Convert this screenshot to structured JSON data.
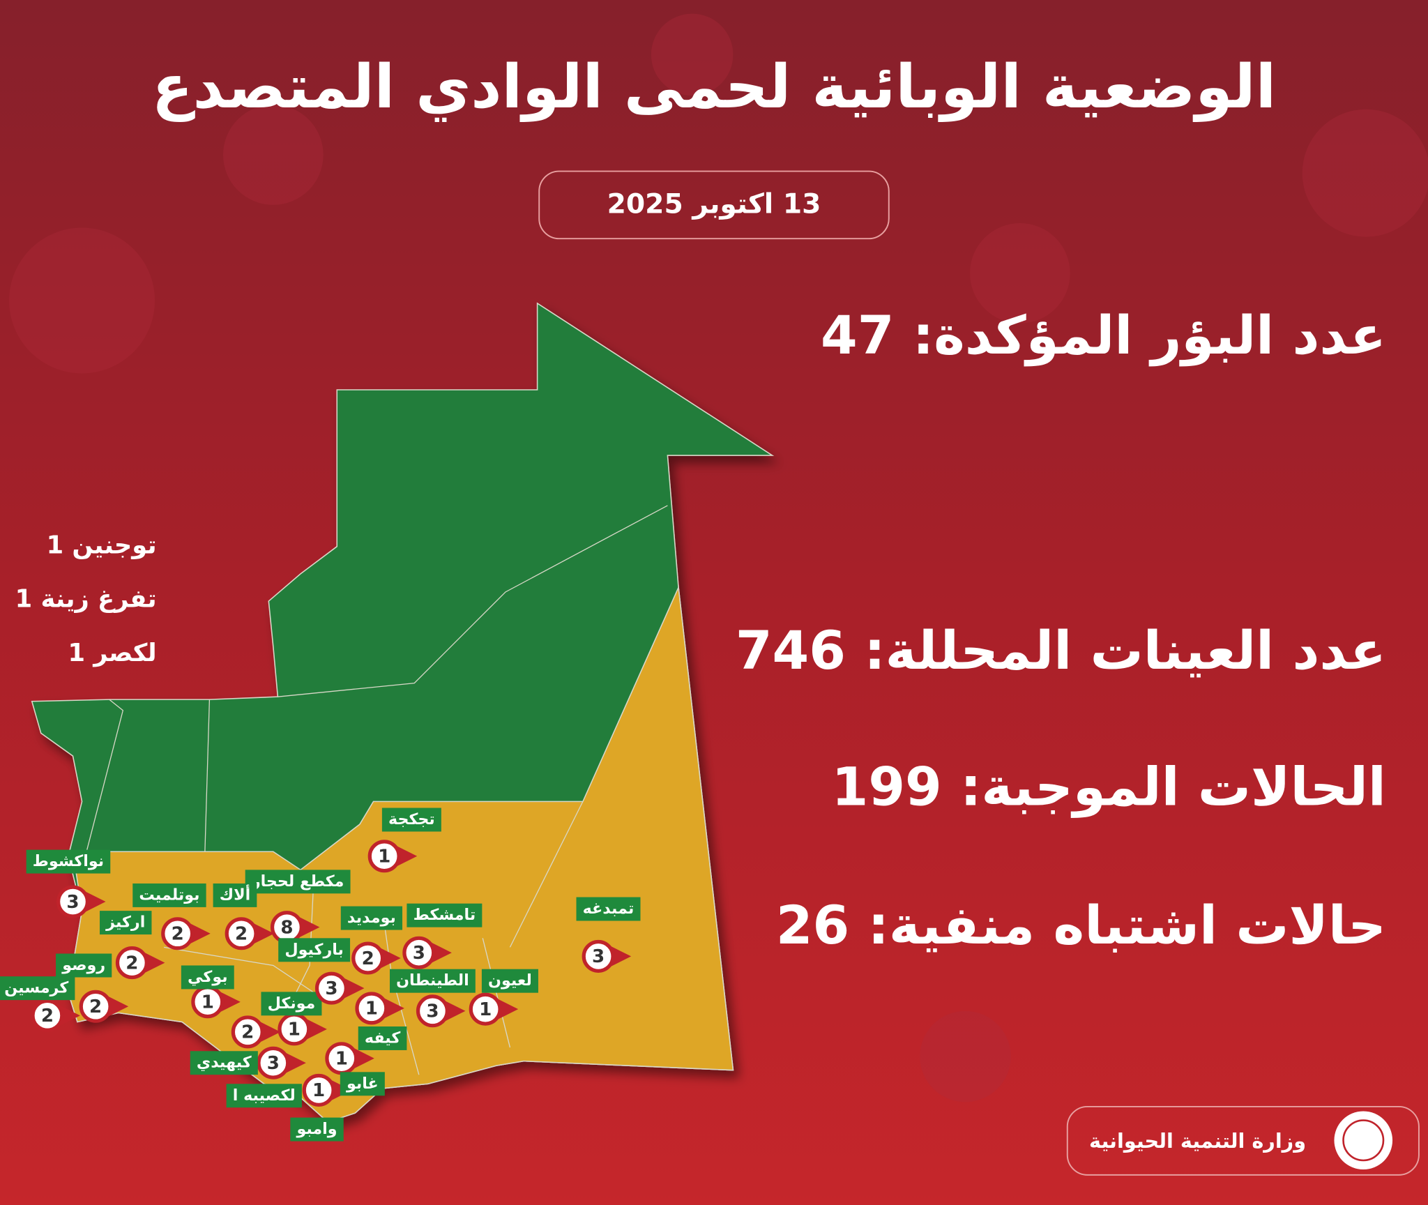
{
  "title": "الوضعية الوبائية لحمى الوادي المتصدع",
  "date": "13 اكتوبر 2025",
  "stats": [
    {
      "label": "عدد البؤر المؤكدة:",
      "value": 47
    },
    {
      "label": "عدد العينات المحللة:",
      "value": 746
    },
    {
      "label": "الحالات الموجبة:",
      "value": 199
    },
    {
      "label": "حالات اشتباه منفية:",
      "value": 26
    }
  ],
  "side_list": [
    "توجنين 1",
    "تفرغ زينة 1",
    "لكصر 1"
  ],
  "locations": [
    {
      "name": "تجكجة",
      "count": 1
    },
    {
      "name": "نواكشوط",
      "count": 3
    },
    {
      "name": "مكطع لحجار",
      "count": 8
    },
    {
      "name": "ألاك",
      "count": 2
    },
    {
      "name": "بوتلميت",
      "count": 2
    },
    {
      "name": "اركيز",
      "count": 2
    },
    {
      "name": "روصو",
      "count": 2
    },
    {
      "name": "كرمسين",
      "count": 2
    },
    {
      "name": "بوكي",
      "count": 1
    },
    {
      "name": "مونكل",
      "count": 1
    },
    {
      "name": "كيهيدي",
      "count": 3
    },
    {
      "name": "لكصيبه ا",
      "count": 1
    },
    {
      "name": "غابو",
      "count": 1
    },
    {
      "name": "كيفه",
      "count": 1
    },
    {
      "name": "باركيول",
      "count": 2
    },
    {
      "name": "بومديد",
      "count": 3
    },
    {
      "name": "الطينطان",
      "count": 3
    },
    {
      "name": "لعيون",
      "count": 1
    },
    {
      "name": "تمبدغه",
      "count": 3
    },
    {
      "name": "تامشكط"
    },
    {
      "name": "وامبو"
    }
  ],
  "unlabeled_markers": [
    2,
    3
  ],
  "footer": "وزارة التنمية الحيوانية"
}
